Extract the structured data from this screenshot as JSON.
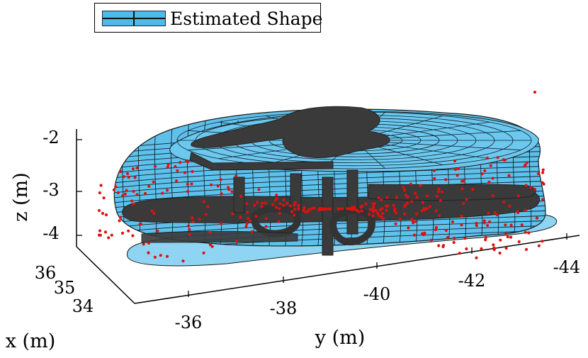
{
  "chart_data": {
    "type": "scatter",
    "chart_kind": "3d-surface-with-point-cloud",
    "legend": {
      "entries": [
        {
          "label": "Estimated Shape",
          "color": "#4fb9ea"
        }
      ],
      "position": "top-left"
    },
    "axes": {
      "x": {
        "label": "x (m)",
        "ticks": [
          "34",
          "35",
          "36"
        ],
        "range": [
          33.6,
          36.4
        ]
      },
      "y": {
        "label": "y (m)",
        "ticks": [
          "-36",
          "-38",
          "-40",
          "-42",
          "-44"
        ],
        "range": [
          -35,
          -45
        ]
      },
      "z": {
        "label": "z (m)",
        "ticks": [
          "-2",
          "-3",
          "-4"
        ],
        "range": [
          -4.6,
          -1.6
        ]
      }
    },
    "grid": false,
    "colors": {
      "surface": "#5ec1ec",
      "surface_edge": "#1a1a1a",
      "dark_object": "#3a3a3a",
      "points": "#e01010"
    },
    "point_cloud": {
      "approx_count": 320,
      "color": "#e01010"
    }
  }
}
